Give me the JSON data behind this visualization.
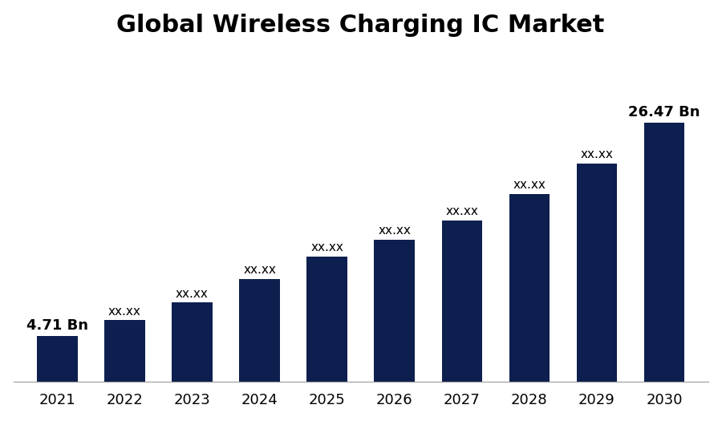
{
  "title": "Global Wireless Charging IC Market",
  "years": [
    2021,
    2022,
    2023,
    2024,
    2025,
    2026,
    2027,
    2028,
    2029,
    2030
  ],
  "values": [
    4.71,
    6.3,
    8.1,
    10.5,
    12.8,
    14.5,
    16.5,
    19.2,
    22.3,
    26.47
  ],
  "labels": [
    "4.71 Bn",
    "xx.xx",
    "xx.xx",
    "xx.xx",
    "xx.xx",
    "xx.xx",
    "xx.xx",
    "xx.xx",
    "xx.xx",
    "26.47 Bn"
  ],
  "bar_color": "#0d1f4e",
  "background_color": "#ffffff",
  "title_fontsize": 22,
  "label_fontsize": 11,
  "tick_fontsize": 13,
  "ylim": [
    0,
    34
  ],
  "bar_width": 0.6
}
